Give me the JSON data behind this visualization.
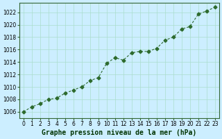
{
  "x": [
    0,
    1,
    2,
    3,
    4,
    5,
    6,
    7,
    8,
    9,
    10,
    11,
    12,
    13,
    14,
    15,
    16,
    17,
    18,
    19,
    20,
    21,
    22,
    23
  ],
  "y": [
    1006.0,
    1006.8,
    1007.3,
    1008.0,
    1008.2,
    1009.0,
    1009.5,
    1010.0,
    1011.0,
    1011.5,
    1013.8,
    1014.7,
    1014.3,
    1015.5,
    1015.7,
    1015.7,
    1016.2,
    1017.5,
    1018.0,
    1019.3,
    1019.7,
    1021.7,
    1022.2,
    1022.8
  ],
  "line_color": "#2d6a2d",
  "marker_color": "#2d6a2d",
  "bg_color": "#cceeff",
  "grid_color": "#aaddcc",
  "title": "Graphe pression niveau de la mer (hPa)",
  "xlabel": "Graphe pression niveau de la mer (hPa)",
  "ylim_min": 1005,
  "ylim_max": 1023,
  "ytick_step": 2,
  "xticks": [
    0,
    1,
    2,
    3,
    4,
    5,
    6,
    7,
    8,
    9,
    10,
    11,
    12,
    13,
    14,
    15,
    16,
    17,
    18,
    19,
    20,
    21,
    22,
    23
  ],
  "title_fontsize": 7,
  "tick_fontsize": 5.5,
  "label_fontsize": 7
}
